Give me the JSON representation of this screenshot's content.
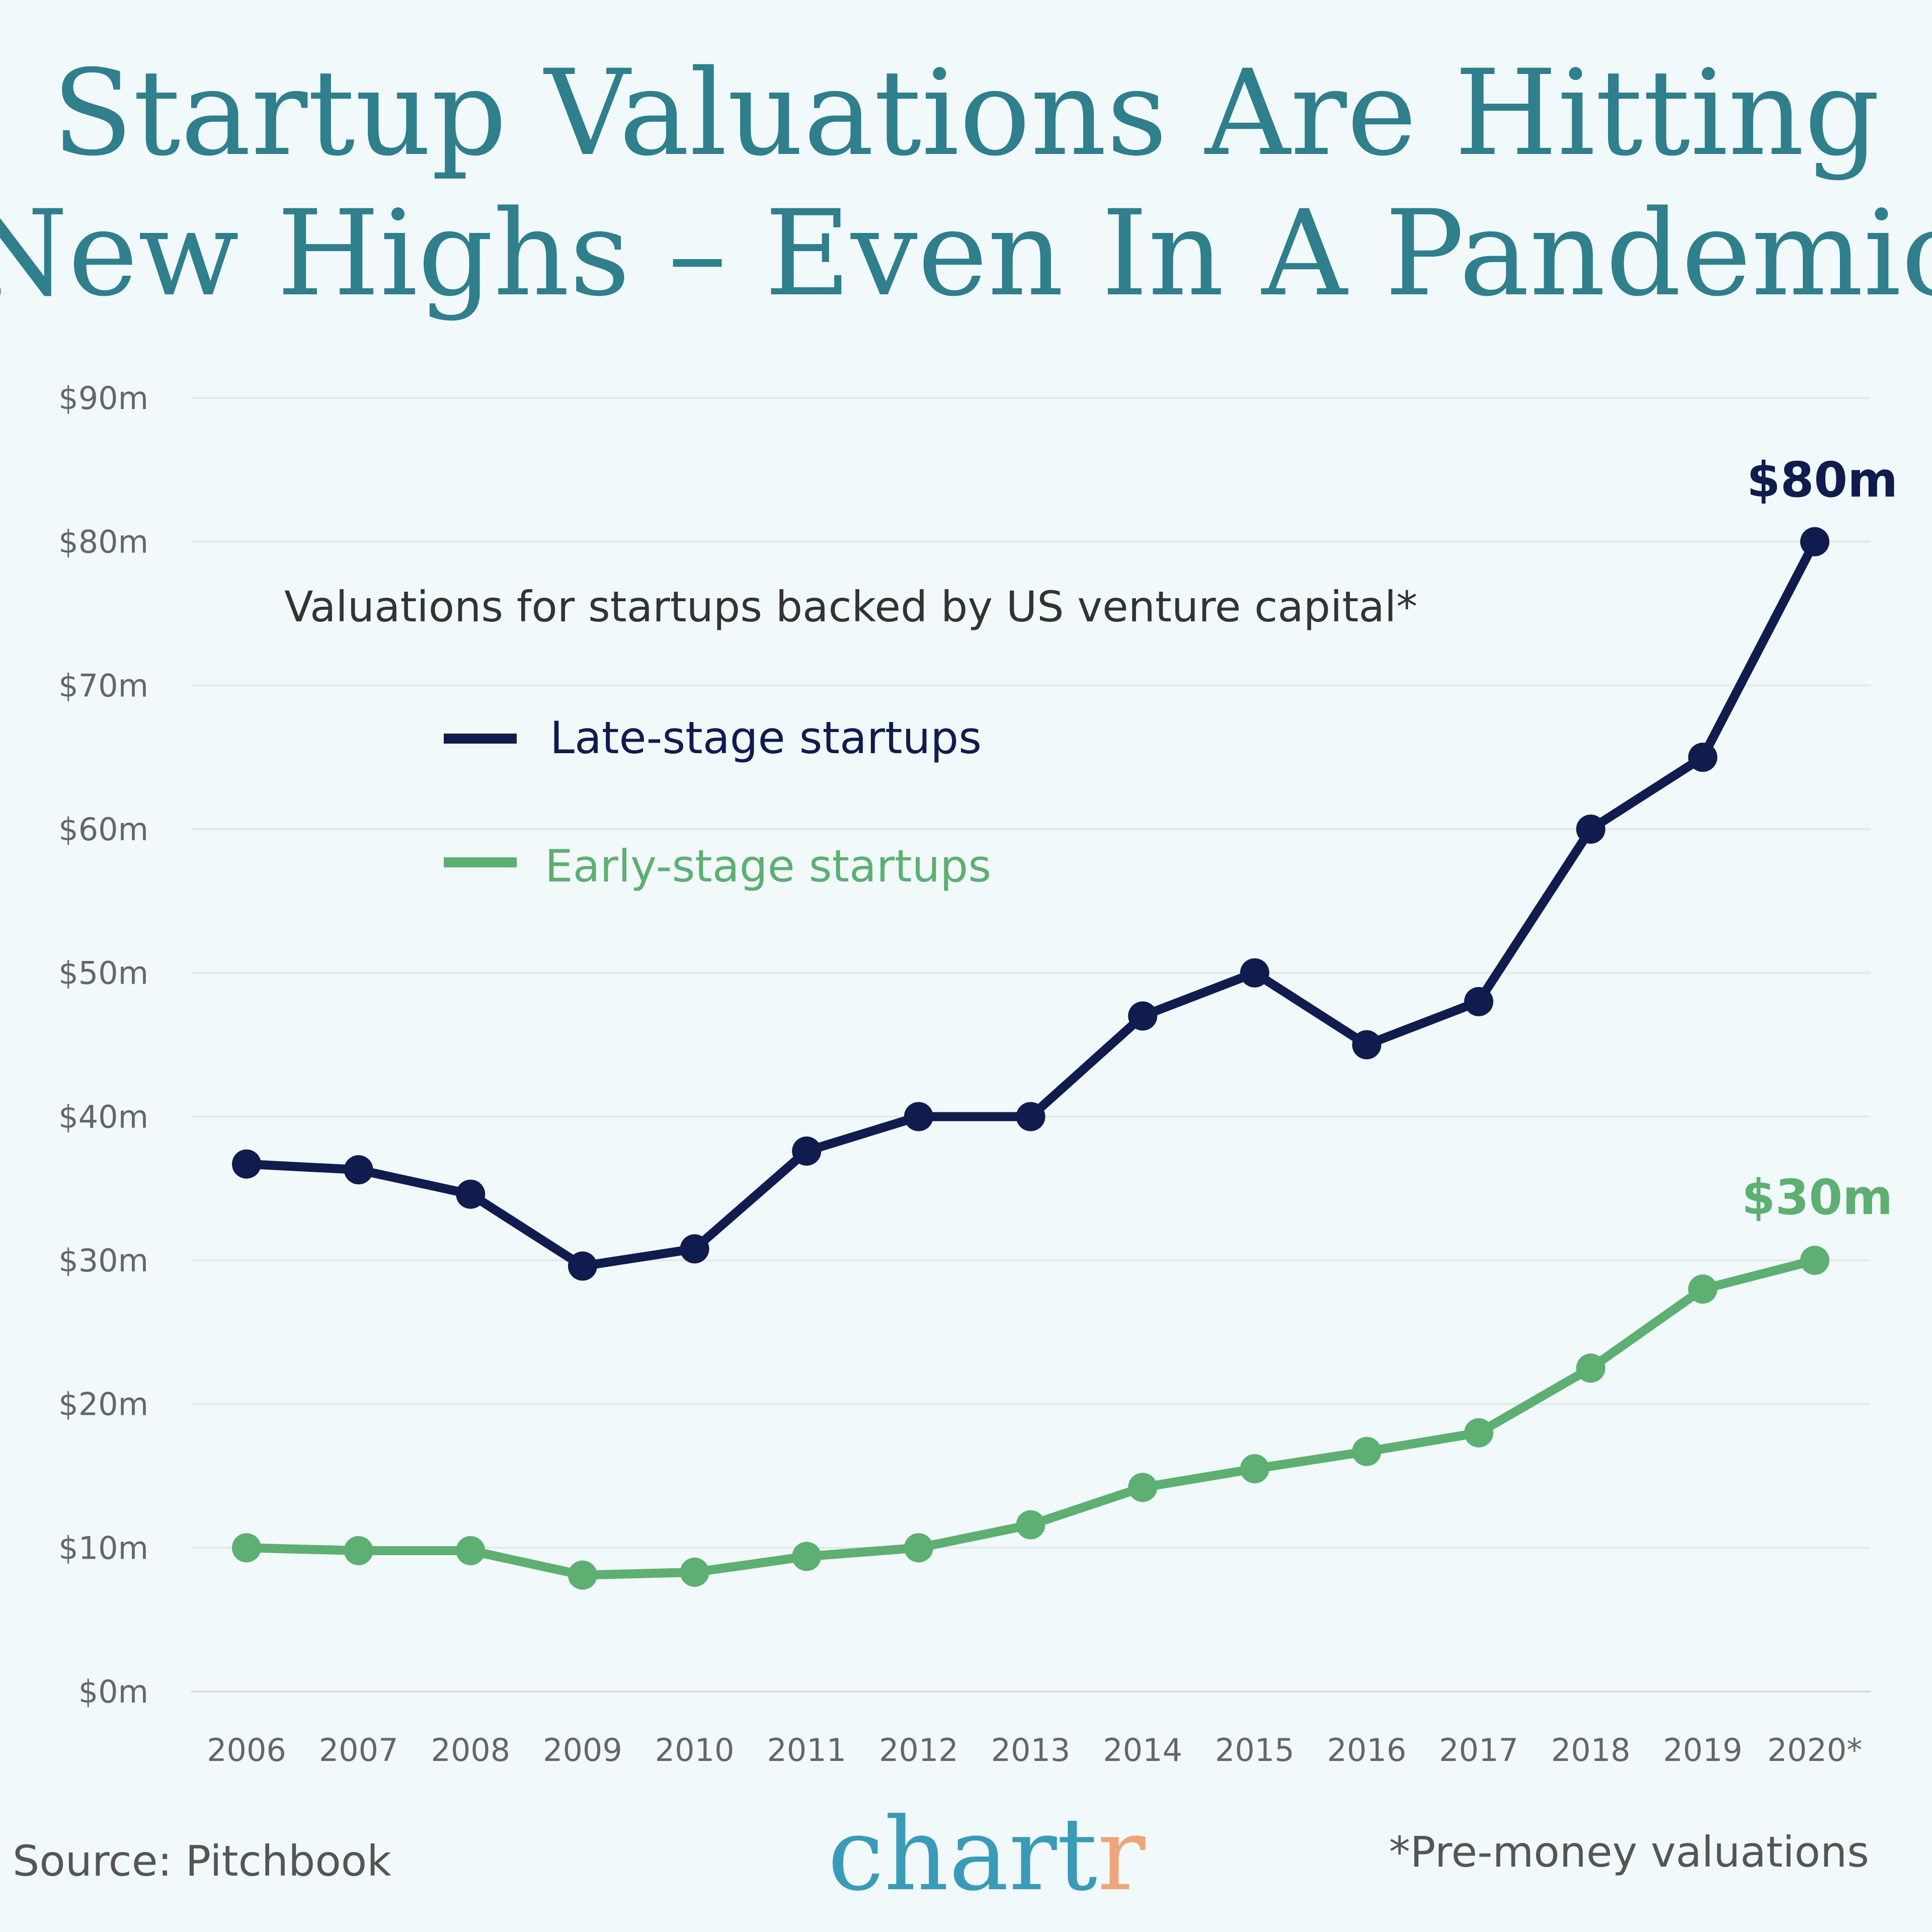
{
  "chart_data": {
    "type": "line",
    "title": "Startup Valuations Are Hitting New Highs – Even In A Pandemic",
    "title_lines": [
      "Startup Valuations Are Hitting",
      "New Highs – Even In A Pandemic"
    ],
    "subtitle": "Valuations for startups backed by US venture capital*",
    "categories": [
      "2006",
      "2007",
      "2008",
      "2009",
      "2010",
      "2011",
      "2012",
      "2013",
      "2014",
      "2015",
      "2016",
      "2017",
      "2018",
      "2019",
      "2020*"
    ],
    "y_ticks": [
      "$0m",
      "$10m",
      "$20m",
      "$30m",
      "$40m",
      "$50m",
      "$60m",
      "$70m",
      "$80m",
      "$90m"
    ],
    "ylim": [
      0,
      90
    ],
    "grid": true,
    "legend_position": "top-left",
    "series": [
      {
        "name": "Late-stage startups",
        "color": "#0f1c4d",
        "values": [
          36.7,
          36.3,
          34.6,
          29.6,
          30.8,
          37.6,
          40,
          40,
          47,
          50,
          45,
          48,
          60,
          65,
          80
        ],
        "end_label": "$80m"
      },
      {
        "name": "Early-stage startups",
        "color": "#5daf72",
        "values": [
          10,
          9.8,
          9.8,
          8.1,
          8.3,
          9.4,
          10,
          11.6,
          14.2,
          15.5,
          16.7,
          18,
          22.5,
          28,
          30
        ],
        "end_label": "$30m"
      }
    ]
  },
  "footer": {
    "source": "Source: Pitchbook",
    "note": "*Pre-money valuations",
    "logo": "chartr",
    "logo_colors": {
      "main": "#3a9bb8",
      "accent": "#eea57a"
    }
  }
}
